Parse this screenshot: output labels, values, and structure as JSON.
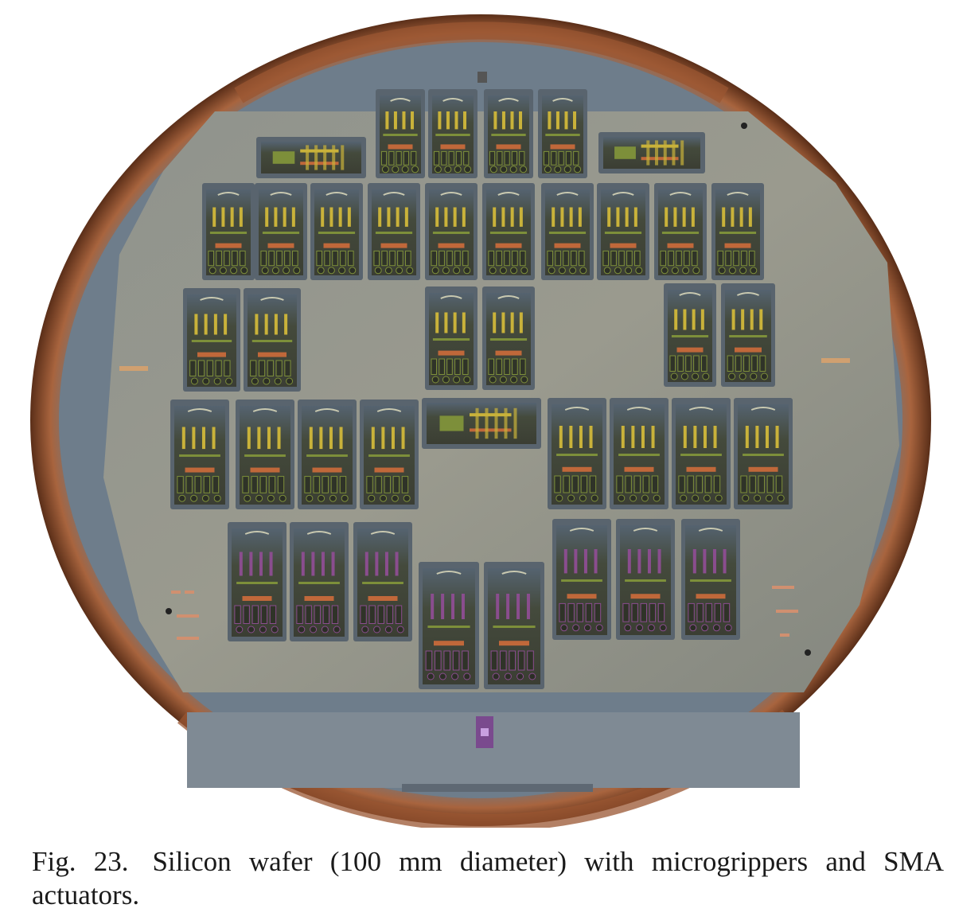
{
  "figure": {
    "label": "Fig. 23.",
    "caption": "Silicon wafer (100 mm diameter) with microgrippers and SMA actuators.",
    "colors": {
      "background": "#ffffff",
      "wafer_rim": "#8a4a2a",
      "wafer_edge": "#6f7f8e",
      "wafer_surface": "#8e9088",
      "die_frame": "#4a5560",
      "die_dark": "#3a3f34",
      "die_gold": "#c9b23a",
      "die_copper": "#c0683a",
      "die_purple": "#8a4d8e",
      "die_green": "#7d8f3a"
    }
  }
}
